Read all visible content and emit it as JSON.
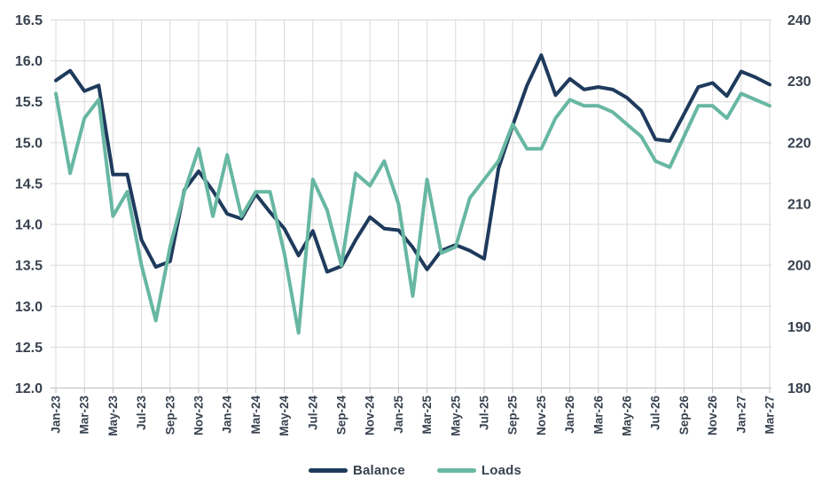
{
  "chart_data": {
    "type": "line",
    "title": "",
    "xlabel": "",
    "ylabel_left": "",
    "ylabel_right": "",
    "grid": true,
    "legend_position": "bottom",
    "x": [
      "Jan-23",
      "Feb-23",
      "Mar-23",
      "Apr-23",
      "May-23",
      "Jun-23",
      "Jul-23",
      "Aug-23",
      "Sep-23",
      "Oct-23",
      "Nov-23",
      "Dec-23",
      "Jan-24",
      "Feb-24",
      "Mar-24",
      "Apr-24",
      "May-24",
      "Jun-24",
      "Jul-24",
      "Aug-24",
      "Sep-24",
      "Oct-24",
      "Nov-24",
      "Dec-24",
      "Jan-25",
      "Feb-25",
      "Mar-25",
      "Apr-25",
      "May-25",
      "Jun-25",
      "Jul-25",
      "Aug-25",
      "Sep-25",
      "Oct-25",
      "Nov-25",
      "Dec-25",
      "Jan-26",
      "Feb-26",
      "Mar-26",
      "Apr-26",
      "May-26",
      "Jun-26",
      "Jul-26",
      "Aug-26",
      "Sep-26",
      "Oct-26",
      "Nov-26",
      "Dec-26",
      "Jan-27",
      "Feb-27",
      "Mar-27"
    ],
    "x_tick_labels": [
      "Jan-23",
      "Mar-23",
      "May-23",
      "Jul-23",
      "Sep-23",
      "Nov-23",
      "Jan-24",
      "Mar-24",
      "May-24",
      "Jul-24",
      "Sep-24",
      "Nov-24",
      "Jan-25",
      "Mar-25",
      "May-25",
      "Jul-25",
      "Sep-25",
      "Nov-25",
      "Jan-26",
      "Mar-26",
      "May-26",
      "Jul-26",
      "Sep-26",
      "Nov-26",
      "Jan-27",
      "Mar-27"
    ],
    "left_axis": {
      "min": 12.0,
      "max": 16.5,
      "step": 0.5,
      "ticks": [
        "16.5",
        "16.0",
        "15.5",
        "15.0",
        "14.5",
        "14.0",
        "13.5",
        "13.0",
        "12.5",
        "12.0"
      ]
    },
    "right_axis": {
      "min": 180,
      "max": 240,
      "step": 10,
      "ticks": [
        "240",
        "230",
        "220",
        "210",
        "200",
        "190",
        "180"
      ]
    },
    "series": [
      {
        "name": "Balance",
        "axis": "left",
        "color": "#1E3A5C",
        "values": [
          15.76,
          15.88,
          15.63,
          15.7,
          14.61,
          14.61,
          13.81,
          13.48,
          13.55,
          14.42,
          14.65,
          14.41,
          14.13,
          14.07,
          14.37,
          14.15,
          13.95,
          13.62,
          13.92,
          13.42,
          13.49,
          13.81,
          14.09,
          13.95,
          13.93,
          13.72,
          13.45,
          13.68,
          13.75,
          13.68,
          13.58,
          14.68,
          15.21,
          15.7,
          16.07,
          15.58,
          15.78,
          15.65,
          15.68,
          15.65,
          15.55,
          15.39,
          15.04,
          15.02,
          15.35,
          15.68,
          15.73,
          15.57,
          15.87,
          15.8,
          15.71
        ]
      },
      {
        "name": "Loads",
        "axis": "right",
        "color": "#67B7A2",
        "values": [
          228,
          215,
          224,
          227,
          208,
          212,
          200,
          191,
          203,
          212,
          219,
          208,
          218,
          208,
          212,
          212,
          202,
          189,
          214,
          209,
          200,
          215,
          213,
          217,
          210,
          195,
          214,
          202,
          203,
          211,
          214,
          217,
          223,
          219,
          219,
          224,
          227,
          226,
          226,
          225,
          223,
          221,
          217,
          216,
          221,
          226,
          226,
          224,
          228,
          227,
          226
        ]
      }
    ]
  },
  "colors": {
    "balance": "#1E3A5C",
    "loads": "#67B7A2",
    "gridline": "#D9D9D9",
    "axis_line": "#BFBFBF",
    "tick_text": "#38424F",
    "background": "#FFFFFF"
  }
}
